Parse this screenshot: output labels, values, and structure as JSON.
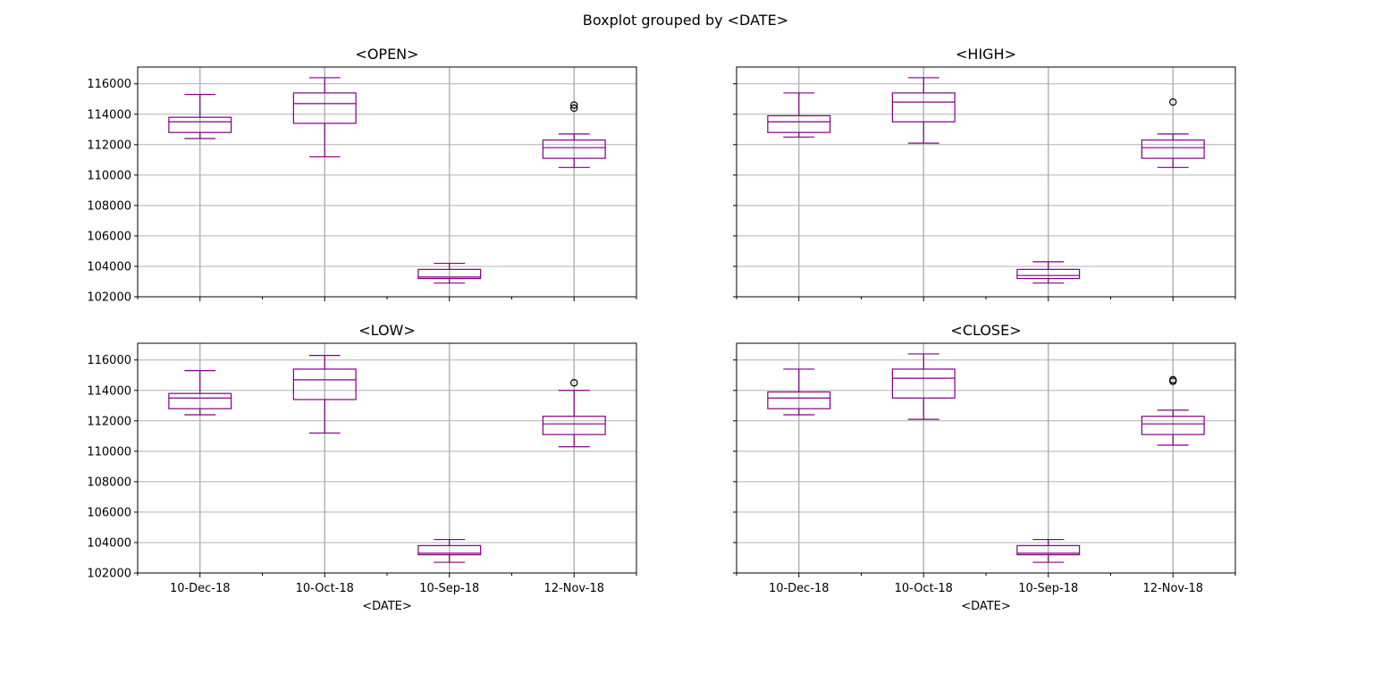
{
  "suptitle": "Boxplot grouped by <DATE>",
  "colors": {
    "box": "#800080",
    "grid": "#b0b0b0",
    "axes": "#000000",
    "flier": "#000000"
  },
  "chart_data": [
    {
      "type": "box",
      "title": "<OPEN>",
      "xlabel": "<DATE>",
      "categories": [
        "10-Dec-18",
        "10-Oct-18",
        "10-Sep-18",
        "12-Nov-18"
      ],
      "ylim": [
        102000,
        117100
      ],
      "yticks": [
        102000,
        104000,
        106000,
        108000,
        110000,
        112000,
        114000,
        116000
      ],
      "grid": true,
      "boxes": [
        {
          "whislo": 112400,
          "q1": 112800,
          "med": 113500,
          "q3": 113800,
          "whishi": 115300,
          "fliers": []
        },
        {
          "whislo": 111200,
          "q1": 113400,
          "med": 114700,
          "q3": 115400,
          "whishi": 116400,
          "fliers": []
        },
        {
          "whislo": 102900,
          "q1": 103200,
          "med": 103300,
          "q3": 103800,
          "whishi": 104200,
          "fliers": []
        },
        {
          "whislo": 110500,
          "q1": 111100,
          "med": 111800,
          "q3": 112300,
          "whishi": 112700,
          "fliers": [
            114600,
            114400
          ]
        }
      ]
    },
    {
      "type": "box",
      "title": "<HIGH>",
      "xlabel": "<DATE>",
      "categories": [
        "10-Dec-18",
        "10-Oct-18",
        "10-Sep-18",
        "12-Nov-18"
      ],
      "ylim": [
        102000,
        117100
      ],
      "yticks": [
        102000,
        104000,
        106000,
        108000,
        110000,
        112000,
        114000,
        116000
      ],
      "grid": true,
      "boxes": [
        {
          "whislo": 112500,
          "q1": 112800,
          "med": 113500,
          "q3": 113900,
          "whishi": 115400,
          "fliers": []
        },
        {
          "whislo": 112100,
          "q1": 113500,
          "med": 114800,
          "q3": 115400,
          "whishi": 116400,
          "fliers": []
        },
        {
          "whislo": 102900,
          "q1": 103200,
          "med": 103400,
          "q3": 103800,
          "whishi": 104300,
          "fliers": []
        },
        {
          "whislo": 110500,
          "q1": 111100,
          "med": 111800,
          "q3": 112300,
          "whishi": 112700,
          "fliers": [
            114800
          ]
        }
      ]
    },
    {
      "type": "box",
      "title": "<LOW>",
      "xlabel": "<DATE>",
      "categories": [
        "10-Dec-18",
        "10-Oct-18",
        "10-Sep-18",
        "12-Nov-18"
      ],
      "ylim": [
        102000,
        117100
      ],
      "yticks": [
        102000,
        104000,
        106000,
        108000,
        110000,
        112000,
        114000,
        116000
      ],
      "grid": true,
      "boxes": [
        {
          "whislo": 112400,
          "q1": 112800,
          "med": 113500,
          "q3": 113800,
          "whishi": 115300,
          "fliers": []
        },
        {
          "whislo": 111200,
          "q1": 113400,
          "med": 114700,
          "q3": 115400,
          "whishi": 116300,
          "fliers": []
        },
        {
          "whislo": 102700,
          "q1": 103200,
          "med": 103300,
          "q3": 103800,
          "whishi": 104200,
          "fliers": []
        },
        {
          "whislo": 110300,
          "q1": 111100,
          "med": 111800,
          "q3": 112300,
          "whishi": 114000,
          "fliers": [
            114500
          ]
        }
      ]
    },
    {
      "type": "box",
      "title": "<CLOSE>",
      "xlabel": "<DATE>",
      "categories": [
        "10-Dec-18",
        "10-Oct-18",
        "10-Sep-18",
        "12-Nov-18"
      ],
      "ylim": [
        102000,
        117100
      ],
      "yticks": [
        102000,
        104000,
        106000,
        108000,
        110000,
        112000,
        114000,
        116000
      ],
      "grid": true,
      "boxes": [
        {
          "whislo": 112400,
          "q1": 112800,
          "med": 113500,
          "q3": 113900,
          "whishi": 115400,
          "fliers": []
        },
        {
          "whislo": 112100,
          "q1": 113500,
          "med": 114800,
          "q3": 115400,
          "whishi": 116400,
          "fliers": []
        },
        {
          "whislo": 102700,
          "q1": 103200,
          "med": 103300,
          "q3": 103800,
          "whishi": 104200,
          "fliers": []
        },
        {
          "whislo": 110400,
          "q1": 111100,
          "med": 111800,
          "q3": 112300,
          "whishi": 112700,
          "fliers": [
            114600,
            114700
          ]
        }
      ]
    }
  ]
}
